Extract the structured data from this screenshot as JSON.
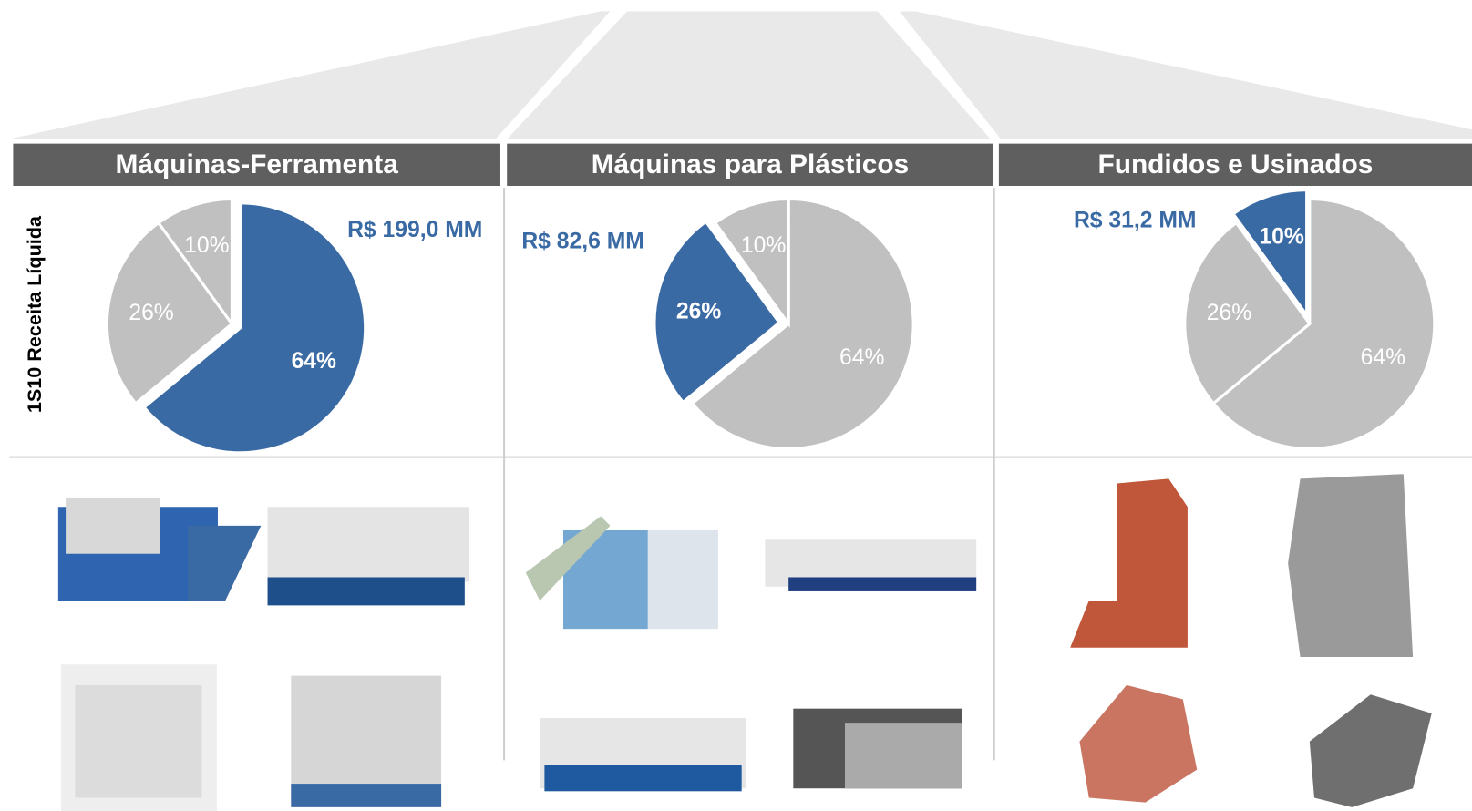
{
  "side_label": "1S10 Receita Líquida",
  "chart_data": [
    {
      "type": "pie",
      "title": "Máquinas-Ferramenta",
      "annotation": "R$ 199,0 MM",
      "values": [
        64,
        26,
        10
      ],
      "value_labels": [
        "64%",
        "26%",
        "10%"
      ],
      "colors": [
        "#3a6aa4",
        "#c0c0c0",
        "#c0c0c0"
      ],
      "explode": [
        true,
        false,
        false
      ]
    },
    {
      "type": "pie",
      "title": "Máquinas para Plásticos",
      "annotation": "R$ 82,6 MM",
      "values": [
        64,
        26,
        10
      ],
      "value_labels": [
        "64%",
        "26%",
        "10%"
      ],
      "colors": [
        "#c0c0c0",
        "#3a6aa4",
        "#c0c0c0"
      ],
      "explode": [
        false,
        true,
        false
      ]
    },
    {
      "type": "pie",
      "title": "Fundidos e Usinados",
      "annotation": "R$ 31,2 MM",
      "values": [
        64,
        26,
        10
      ],
      "value_labels": [
        "64%",
        "26%",
        "10%"
      ],
      "colors": [
        "#c0c0c0",
        "#c0c0c0",
        "#3a6aa4"
      ],
      "explode": [
        false,
        false,
        true
      ]
    }
  ]
}
